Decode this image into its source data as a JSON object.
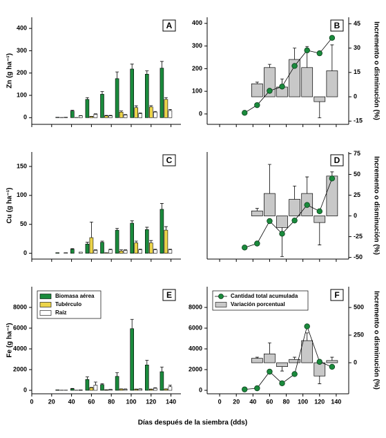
{
  "chart_data": [
    {
      "type": "bar",
      "panel_label": "A",
      "ylabel": "Zn (g ha⁻¹)",
      "x": [
        30,
        45,
        60,
        75,
        90,
        105,
        120,
        135
      ],
      "xlim": [
        0,
        150
      ],
      "xticks": [
        0,
        20,
        40,
        60,
        80,
        100,
        120,
        140
      ],
      "show_xticklabels": false,
      "ylim": [
        -30,
        450
      ],
      "yticks": [
        0,
        100,
        200,
        300,
        400
      ],
      "series": [
        {
          "color": "#1a8a3c",
          "values": [
            2,
            30,
            82,
            105,
            175,
            218,
            195,
            222
          ],
          "errors": [
            0,
            3,
            8,
            12,
            30,
            22,
            15,
            30
          ]
        },
        {
          "color": "#ecd44a",
          "values": [
            1,
            1,
            5,
            8,
            25,
            45,
            48,
            82
          ],
          "errors": [
            0,
            0,
            1,
            2,
            5,
            8,
            6,
            8
          ]
        },
        {
          "color": "#ffffff",
          "values": [
            2,
            8,
            15,
            8,
            12,
            18,
            25,
            32
          ],
          "errors": [
            0,
            1,
            2,
            2,
            2,
            3,
            3,
            5
          ]
        }
      ]
    },
    {
      "type": "line_bar",
      "panel_label": "B",
      "y2label": "Incremento o disminución (%)",
      "x": [
        30,
        45,
        60,
        75,
        90,
        105,
        120,
        135
      ],
      "xlim": [
        -15,
        155
      ],
      "xticks": [
        0,
        20,
        40,
        60,
        80,
        100,
        120,
        140
      ],
      "show_xticklabels": false,
      "ylim": [
        -46,
        427
      ],
      "yticks": [
        0,
        100,
        200,
        300,
        400
      ],
      "y2lim": [
        -17,
        49
      ],
      "y2ticks": [
        -15,
        0,
        15,
        30,
        45
      ],
      "series": [
        {
          "color": "#1a8a3c",
          "values": [
            5,
            39,
            102,
            121,
            212,
            281,
            268,
            336
          ]
        },
        {
          "axis": "y2",
          "color": "#c8c8c8",
          "values": [
            null,
            8,
            18,
            6,
            23,
            18,
            -3,
            16
          ],
          "errors": [
            null,
            1,
            2,
            5,
            7,
            13,
            10,
            16
          ]
        }
      ]
    },
    {
      "type": "bar",
      "panel_label": "C",
      "ylabel": "Cu (g ha⁻¹)",
      "x": [
        30,
        45,
        60,
        75,
        90,
        105,
        120,
        135
      ],
      "xlim": [
        0,
        150
      ],
      "xticks": [
        0,
        20,
        40,
        60,
        80,
        100,
        120,
        140
      ],
      "show_xticklabels": false,
      "ylim": [
        -10,
        175
      ],
      "yticks": [
        0,
        50,
        100,
        150
      ],
      "series": [
        {
          "color": "#1a8a3c",
          "values": [
            1,
            7,
            16,
            19,
            40,
            52,
            41,
            76
          ],
          "errors": [
            0,
            1,
            3,
            2,
            3,
            4,
            4,
            10
          ]
        },
        {
          "color": "#ecd44a",
          "values": [
            0,
            0,
            27,
            1,
            4,
            18,
            18,
            40
          ],
          "errors": [
            0,
            0,
            27,
            0,
            2,
            3,
            4,
            6
          ]
        },
        {
          "color": "#ffffff",
          "values": [
            1,
            2,
            5,
            6,
            5,
            6,
            6,
            6
          ],
          "errors": [
            0,
            0,
            1,
            1,
            1,
            1,
            1,
            1
          ]
        }
      ]
    },
    {
      "type": "line_bar",
      "panel_label": "D",
      "y2label": "Incremento o disminución (%)",
      "x": [
        30,
        45,
        60,
        75,
        90,
        105,
        120,
        135
      ],
      "xlim": [
        -15,
        155
      ],
      "xticks": [
        0,
        20,
        40,
        60,
        80,
        100,
        120,
        140
      ],
      "show_xticklabels": false,
      "ylim": [
        -18,
        168
      ],
      "yticks": [],
      "y2lim": [
        -52,
        77
      ],
      "y2ticks": [
        -50,
        -25,
        0,
        25,
        50,
        75
      ],
      "series": [
        {
          "color": "#1a8a3c",
          "values": [
            2,
            9,
            48,
            26,
            49,
            76,
            65,
            122
          ]
        },
        {
          "axis": "y2",
          "color": "#c8c8c8",
          "values": [
            null,
            6,
            27,
            -14,
            20,
            27,
            -8,
            48
          ],
          "errors": [
            null,
            3,
            35,
            35,
            16,
            20,
            27,
            5
          ]
        }
      ]
    },
    {
      "type": "bar",
      "panel_label": "E",
      "ylabel": "Fe (g ha⁻¹)",
      "xlabel": "Días después de la siembra (dds)",
      "x": [
        30,
        45,
        60,
        75,
        90,
        105,
        120,
        135
      ],
      "xlim": [
        0,
        150
      ],
      "xticks": [
        0,
        20,
        40,
        60,
        80,
        100,
        120,
        140
      ],
      "show_xticklabels": true,
      "ylim": [
        -333,
        10000
      ],
      "yticks": [
        0,
        2000,
        4000,
        6000,
        8000
      ],
      "legend": "upper left",
      "series": [
        {
          "name": "Biomasa aérea",
          "color": "#1a8a3c",
          "values": [
            50,
            150,
            1050,
            550,
            1350,
            5950,
            2450,
            1800
          ],
          "errors": [
            0,
            30,
            250,
            100,
            350,
            900,
            450,
            450
          ]
        },
        {
          "name": "Tubérculo",
          "color": "#ecd44a",
          "values": [
            20,
            20,
            250,
            50,
            120,
            100,
            100,
            120
          ],
          "errors": [
            0,
            0,
            30,
            10,
            20,
            20,
            20,
            20
          ]
        },
        {
          "name": "Raíz",
          "color": "#ffffff",
          "values": [
            20,
            30,
            500,
            80,
            100,
            120,
            200,
            350
          ],
          "errors": [
            0,
            5,
            300,
            20,
            30,
            30,
            50,
            150
          ]
        }
      ]
    },
    {
      "type": "line_bar",
      "panel_label": "F",
      "y2label": "Incremento o disminución (%)",
      "x": [
        30,
        45,
        60,
        75,
        90,
        105,
        120,
        135
      ],
      "xlim": [
        -15,
        155
      ],
      "xticks": [
        0,
        20,
        40,
        60,
        80,
        100,
        120,
        140
      ],
      "show_xticklabels": true,
      "ylim": [
        -333,
        10000
      ],
      "yticks": [
        0,
        2000,
        4000,
        6000,
        8000
      ],
      "y2lim": [
        -281,
        688
      ],
      "y2ticks": [
        0,
        250,
        500
      ],
      "legend": "upper left",
      "series": [
        {
          "name": "Cantidad total acumulada",
          "color": "#1a8a3c",
          "values": [
            90,
            200,
            1800,
            680,
            1570,
            6170,
            2750,
            2270
          ]
        },
        {
          "name": "Variación porcentual",
          "axis": "y2",
          "color": "#c8c8c8",
          "values": [
            null,
            40,
            80,
            -35,
            30,
            200,
            -120,
            20
          ],
          "errors": [
            null,
            10,
            100,
            40,
            20,
            70,
            70,
            30
          ]
        }
      ]
    }
  ]
}
